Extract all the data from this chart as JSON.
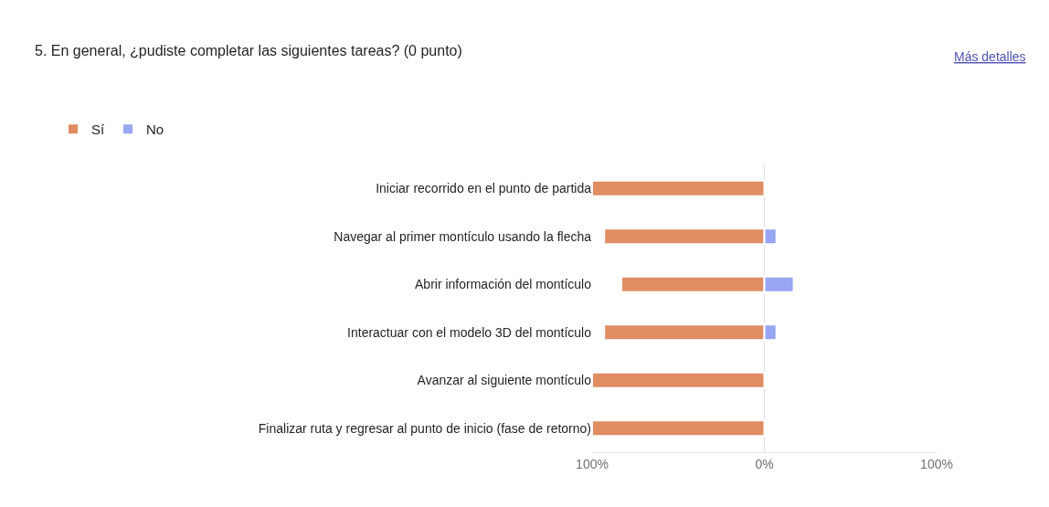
{
  "chart_data": {
    "type": "bar",
    "orientation": "horizontal",
    "stacked": true,
    "title": "5. En general, ¿pudiste completar las siguientes tareas? (0 punto)",
    "annotations": [
      "Más detalles"
    ],
    "categories": [
      "Iniciar recorrido en el punto de partida",
      "Navegar al primer montículo usando la flecha",
      "Abrir información del montículo",
      "Interactuar con el modelo 3D del montículo",
      "Avanzar al siguiente montículo",
      "Finalizar ruta y regresar al punto de inicio (fase de retorno)"
    ],
    "series": [
      {
        "name": "Sí",
        "color": "#e08d63",
        "values": [
          -100,
          -93,
          -83,
          -93,
          -100,
          -100
        ]
      },
      {
        "name": "No",
        "color": "#97a6f2",
        "values": [
          null,
          7,
          17,
          7,
          null,
          null
        ]
      }
    ],
    "xlim": [
      -100,
      100
    ],
    "xticks": [
      {
        "value": -100,
        "label": "100%"
      },
      {
        "value": 0,
        "label": "0%"
      },
      {
        "value": 100,
        "label": "100%"
      }
    ],
    "grid": "x",
    "legend": "top left"
  }
}
